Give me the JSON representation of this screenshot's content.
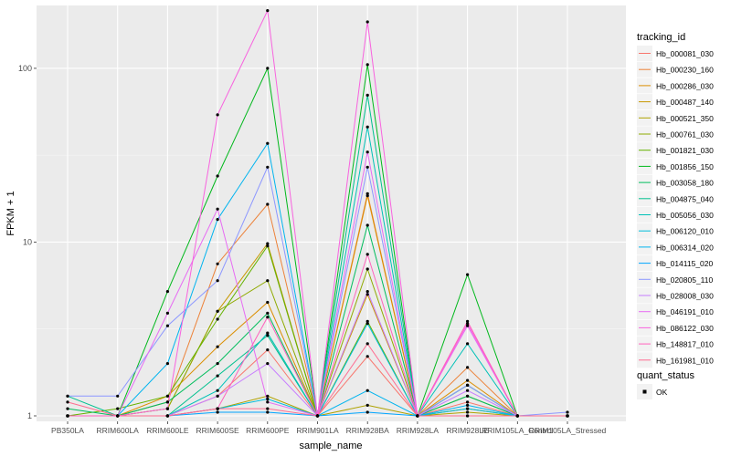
{
  "chart_data": {
    "type": "line",
    "xlabel": "sample_name",
    "ylabel": "FPKM + 1",
    "y_scale": "log10",
    "ylim": [
      0.93,
      230
    ],
    "y_ticks": [
      1,
      10,
      100
    ],
    "y_tick_labels": [
      "1",
      "10",
      "100"
    ],
    "grid": true,
    "legend_position": "right",
    "categories": [
      "PB350LA",
      "RRIM600LA",
      "RRIM600LE",
      "RRIM600SE",
      "RRIM600PE",
      "RRIM901LA",
      "RRIM928BA",
      "RRIM928LA",
      "RRIM928LE",
      "RRIM105LA_Control",
      "RRIM105LA_Stressed"
    ],
    "legend_title": "tracking_id",
    "series": [
      {
        "name": "Hb_000081_030",
        "color": "#F8766D",
        "values": [
          1.0,
          1.0,
          1.0,
          1.3,
          2.4,
          1.0,
          2.2,
          1.0,
          1.2,
          1.0,
          1.0
        ]
      },
      {
        "name": "Hb_000230_160",
        "color": "#EC8239",
        "values": [
          1.0,
          1.0,
          1.2,
          7.5,
          16.5,
          1.0,
          19.0,
          1.0,
          1.9,
          1.0,
          1.0
        ]
      },
      {
        "name": "Hb_000286_030",
        "color": "#DB8E00",
        "values": [
          1.0,
          1.0,
          1.3,
          2.5,
          4.5,
          1.0,
          18.5,
          1.0,
          1.6,
          1.0,
          1.0
        ]
      },
      {
        "name": "Hb_000487_140",
        "color": "#C79800",
        "values": [
          1.0,
          1.0,
          1.1,
          4.0,
          9.8,
          1.0,
          5.0,
          1.0,
          1.1,
          1.0,
          1.0
        ]
      },
      {
        "name": "Hb_000521_350",
        "color": "#AEA200",
        "values": [
          1.0,
          1.0,
          1.0,
          1.1,
          1.3,
          1.0,
          1.15,
          1.0,
          1.05,
          1.0,
          1.0
        ]
      },
      {
        "name": "Hb_000761_030",
        "color": "#8FAA00",
        "values": [
          1.0,
          1.0,
          1.1,
          4.0,
          6.0,
          1.0,
          7.0,
          1.0,
          1.3,
          1.0,
          1.0
        ]
      },
      {
        "name": "Hb_001821_030",
        "color": "#64B200",
        "values": [
          1.0,
          1.1,
          1.3,
          3.6,
          9.5,
          1.0,
          3.5,
          1.0,
          1.5,
          1.0,
          1.0
        ]
      },
      {
        "name": "Hb_001856_150",
        "color": "#00B81B",
        "values": [
          1.0,
          1.0,
          5.2,
          24.0,
          100.0,
          1.0,
          105.0,
          1.0,
          6.5,
          1.0,
          1.0
        ]
      },
      {
        "name": "Hb_003058_180",
        "color": "#00BD5C",
        "values": [
          1.1,
          1.0,
          1.2,
          2.0,
          3.9,
          1.0,
          12.5,
          1.0,
          1.3,
          1.0,
          1.0
        ]
      },
      {
        "name": "Hb_004875_040",
        "color": "#00C08E",
        "values": [
          1.3,
          1.0,
          1.0,
          1.7,
          2.9,
          1.0,
          70.0,
          1.0,
          1.5,
          1.0,
          1.0
        ]
      },
      {
        "name": "Hb_005056_030",
        "color": "#00C1B7",
        "values": [
          1.0,
          1.0,
          1.0,
          1.4,
          3.0,
          1.0,
          46.0,
          1.0,
          2.6,
          1.0,
          1.0
        ]
      },
      {
        "name": "Hb_006120_010",
        "color": "#00BDDC",
        "values": [
          1.0,
          1.0,
          1.0,
          1.1,
          1.25,
          1.0,
          3.4,
          1.0,
          1.1,
          1.0,
          1.0
        ]
      },
      {
        "name": "Hb_006314_020",
        "color": "#00B4EF",
        "values": [
          1.0,
          1.0,
          2.0,
          13.5,
          37.0,
          1.0,
          1.4,
          1.0,
          1.15,
          1.0,
          1.0
        ]
      },
      {
        "name": "Hb_014115_020",
        "color": "#00A5FF",
        "values": [
          1.0,
          1.0,
          1.0,
          1.05,
          1.05,
          1.0,
          1.05,
          1.0,
          1.0,
          1.0,
          1.0
        ]
      },
      {
        "name": "Hb_020805_110",
        "color": "#8C97FF",
        "values": [
          1.3,
          1.3,
          3.3,
          6.0,
          27.0,
          1.0,
          27.0,
          1.0,
          1.5,
          1.0,
          1.05
        ]
      },
      {
        "name": "Hb_028008_030",
        "color": "#C77CFF",
        "values": [
          1.0,
          1.0,
          1.0,
          1.3,
          2.0,
          1.0,
          5.2,
          1.0,
          1.4,
          1.0,
          1.0
        ]
      },
      {
        "name": "Hb_046191_010",
        "color": "#E76BF3",
        "values": [
          1.0,
          1.0,
          3.9,
          15.5,
          1.2,
          1.0,
          33.0,
          1.0,
          3.3,
          1.0,
          1.0
        ]
      },
      {
        "name": "Hb_086122_030",
        "color": "#F863DF",
        "values": [
          1.0,
          1.0,
          1.1,
          54.0,
          215.0,
          1.0,
          185.0,
          1.0,
          3.4,
          1.0,
          1.0
        ]
      },
      {
        "name": "Hb_148817_010",
        "color": "#FF62BC",
        "values": [
          1.0,
          1.0,
          1.0,
          1.1,
          3.7,
          1.0,
          8.5,
          1.0,
          3.5,
          1.0,
          1.0
        ]
      },
      {
        "name": "Hb_161981_010",
        "color": "#FF6C91",
        "values": [
          1.2,
          1.0,
          1.0,
          1.1,
          1.1,
          1.0,
          2.6,
          1.0,
          1.0,
          1.0,
          1.0
        ]
      }
    ],
    "shape_legend": {
      "title": "quant_status",
      "entries": [
        "OK"
      ]
    }
  }
}
